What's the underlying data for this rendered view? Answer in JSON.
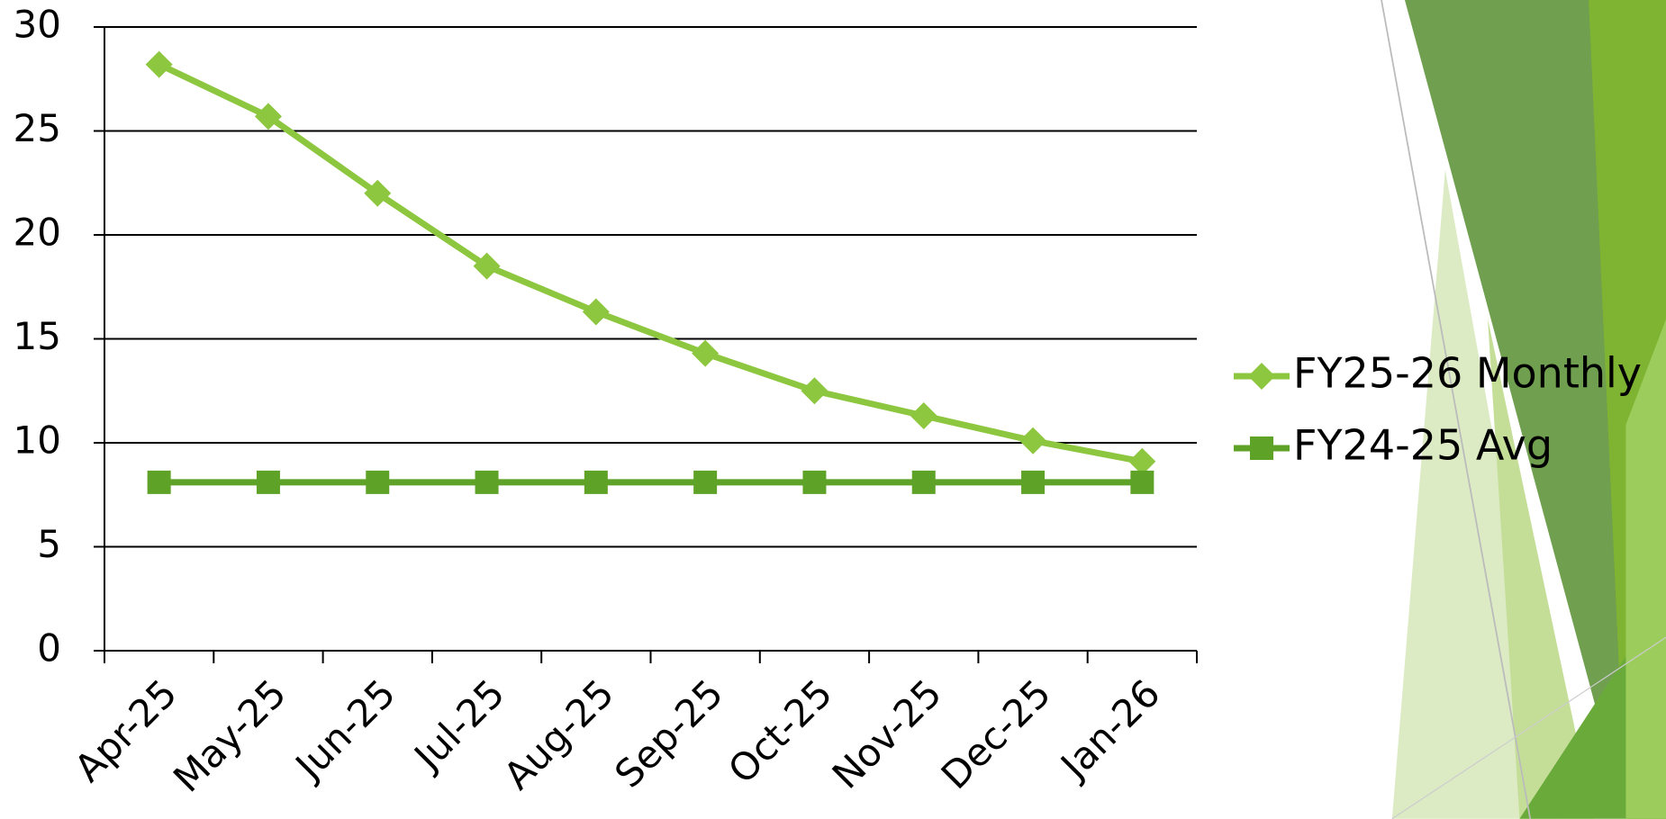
{
  "chart_data": {
    "type": "line",
    "categories": [
      "Apr-25",
      "May-25",
      "Jun-25",
      "Jul-25",
      "Aug-25",
      "Sep-25",
      "Oct-25",
      "Nov-25",
      "Dec-25",
      "Jan-26"
    ],
    "series": [
      {
        "name": "FY25-26 Monthly",
        "color": "#8dc63f",
        "marker": "diamond",
        "values": [
          28.2,
          25.7,
          22.0,
          18.5,
          16.3,
          14.3,
          12.5,
          11.3,
          10.1,
          9.1
        ]
      },
      {
        "name": "FY24-25 Avg",
        "color": "#5ea227",
        "marker": "square",
        "values": [
          8.1,
          8.1,
          8.1,
          8.1,
          8.1,
          8.1,
          8.1,
          8.1,
          8.1,
          8.1
        ]
      }
    ],
    "ylim": [
      0,
      30
    ],
    "yticks": [
      0,
      5,
      10,
      15,
      20,
      25,
      30
    ],
    "grid": true,
    "legend": "right"
  }
}
